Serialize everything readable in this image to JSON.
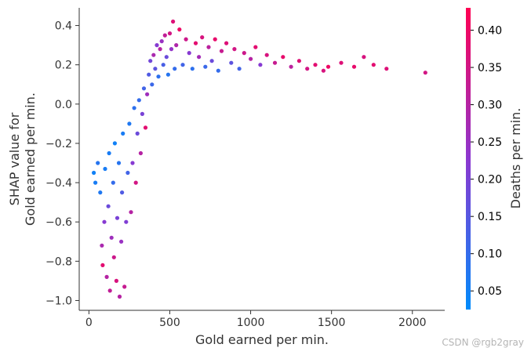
{
  "chart_data": {
    "type": "scatter",
    "title": "",
    "xlabel": "Gold earned per min.",
    "ylabel_lines": [
      "SHAP value for",
      "Gold earned per min."
    ],
    "xlim": [
      -60,
      2200
    ],
    "ylim": [
      -1.05,
      0.49
    ],
    "xticks": [
      0,
      500,
      1000,
      1500,
      2000
    ],
    "yticks": [
      -1.0,
      -0.8,
      -0.6,
      -0.4,
      -0.2,
      0.0,
      0.2,
      0.4
    ],
    "ytick_labels": [
      "−1.0",
      "−0.8",
      "−0.6",
      "−0.4",
      "−0.2",
      "0.0",
      "0.2",
      "0.4"
    ],
    "grid": false,
    "colorbar": {
      "label": "Deaths per min.",
      "range": [
        0.025,
        0.43
      ],
      "ticks": [
        0.05,
        0.1,
        0.15,
        0.2,
        0.25,
        0.3,
        0.35,
        0.4
      ],
      "tick_labels": [
        "0.05",
        "0.10",
        "0.15",
        "0.20",
        "0.25",
        "0.30",
        "0.35",
        "0.40"
      ],
      "low_color": "#008bfb",
      "mid_color": "#8c37d0",
      "high_color": "#ff0052"
    },
    "colors": {
      "low": "#008bfb",
      "mid": "#8c37d0",
      "high": "#ff0052",
      "axis": "#333333"
    },
    "series": [
      {
        "points": [
          [
            30,
            -0.35,
            0.05
          ],
          [
            40,
            -0.4,
            0.06
          ],
          [
            55,
            -0.3,
            0.08
          ],
          [
            70,
            -0.45,
            0.07
          ],
          [
            80,
            -0.72,
            0.28
          ],
          [
            85,
            -0.82,
            0.38
          ],
          [
            95,
            -0.6,
            0.22
          ],
          [
            100,
            -0.33,
            0.06
          ],
          [
            110,
            -0.88,
            0.3
          ],
          [
            120,
            -0.52,
            0.18
          ],
          [
            125,
            -0.25,
            0.06
          ],
          [
            130,
            -0.95,
            0.32
          ],
          [
            140,
            -0.68,
            0.26
          ],
          [
            150,
            -0.4,
            0.1
          ],
          [
            155,
            -0.78,
            0.34
          ],
          [
            160,
            -0.2,
            0.05
          ],
          [
            170,
            -0.9,
            0.36
          ],
          [
            175,
            -0.58,
            0.2
          ],
          [
            185,
            -0.3,
            0.08
          ],
          [
            190,
            -0.98,
            0.3
          ],
          [
            200,
            -0.7,
            0.25
          ],
          [
            205,
            -0.45,
            0.14
          ],
          [
            210,
            -0.15,
            0.06
          ],
          [
            220,
            -0.93,
            0.33
          ],
          [
            230,
            -0.6,
            0.21
          ],
          [
            240,
            -0.35,
            0.12
          ],
          [
            250,
            -0.1,
            0.07
          ],
          [
            260,
            -0.55,
            0.3
          ],
          [
            270,
            -0.3,
            0.22
          ],
          [
            280,
            -0.02,
            0.09
          ],
          [
            290,
            -0.4,
            0.35
          ],
          [
            300,
            -0.15,
            0.18
          ],
          [
            310,
            0.02,
            0.1
          ],
          [
            320,
            -0.25,
            0.3
          ],
          [
            330,
            -0.05,
            0.2
          ],
          [
            340,
            0.08,
            0.12
          ],
          [
            350,
            -0.12,
            0.38
          ],
          [
            360,
            0.05,
            0.26
          ],
          [
            370,
            0.15,
            0.14
          ],
          [
            380,
            0.22,
            0.19
          ],
          [
            390,
            0.1,
            0.11
          ],
          [
            400,
            0.25,
            0.28
          ],
          [
            410,
            0.18,
            0.16
          ],
          [
            420,
            0.3,
            0.22
          ],
          [
            430,
            0.14,
            0.09
          ],
          [
            440,
            0.28,
            0.3
          ],
          [
            450,
            0.32,
            0.25
          ],
          [
            460,
            0.2,
            0.13
          ],
          [
            470,
            0.35,
            0.32
          ],
          [
            480,
            0.24,
            0.18
          ],
          [
            490,
            0.15,
            0.08
          ],
          [
            500,
            0.36,
            0.35
          ],
          [
            510,
            0.28,
            0.24
          ],
          [
            520,
            0.42,
            0.37
          ],
          [
            530,
            0.18,
            0.1
          ],
          [
            540,
            0.3,
            0.29
          ],
          [
            560,
            0.38,
            0.4
          ],
          [
            580,
            0.2,
            0.12
          ],
          [
            600,
            0.33,
            0.34
          ],
          [
            620,
            0.26,
            0.22
          ],
          [
            640,
            0.18,
            0.09
          ],
          [
            660,
            0.31,
            0.38
          ],
          [
            680,
            0.24,
            0.27
          ],
          [
            700,
            0.34,
            0.36
          ],
          [
            720,
            0.19,
            0.11
          ],
          [
            740,
            0.29,
            0.31
          ],
          [
            760,
            0.22,
            0.18
          ],
          [
            780,
            0.33,
            0.39
          ],
          [
            800,
            0.17,
            0.1
          ],
          [
            820,
            0.27,
            0.33
          ],
          [
            850,
            0.31,
            0.37
          ],
          [
            880,
            0.21,
            0.16
          ],
          [
            900,
            0.28,
            0.35
          ],
          [
            930,
            0.18,
            0.12
          ],
          [
            960,
            0.26,
            0.34
          ],
          [
            1000,
            0.23,
            0.3
          ],
          [
            1030,
            0.29,
            0.38
          ],
          [
            1060,
            0.2,
            0.22
          ],
          [
            1100,
            0.25,
            0.36
          ],
          [
            1150,
            0.21,
            0.33
          ],
          [
            1200,
            0.24,
            0.39
          ],
          [
            1250,
            0.19,
            0.31
          ],
          [
            1300,
            0.22,
            0.37
          ],
          [
            1350,
            0.18,
            0.35
          ],
          [
            1400,
            0.2,
            0.38
          ],
          [
            1450,
            0.17,
            0.36
          ],
          [
            1480,
            0.19,
            0.4
          ],
          [
            1560,
            0.21,
            0.37
          ],
          [
            1640,
            0.19,
            0.39
          ],
          [
            1700,
            0.24,
            0.36
          ],
          [
            1760,
            0.2,
            0.38
          ],
          [
            1840,
            0.18,
            0.37
          ],
          [
            2080,
            0.16,
            0.35
          ]
        ]
      }
    ]
  },
  "watermark": "CSDN @rgb2gray"
}
